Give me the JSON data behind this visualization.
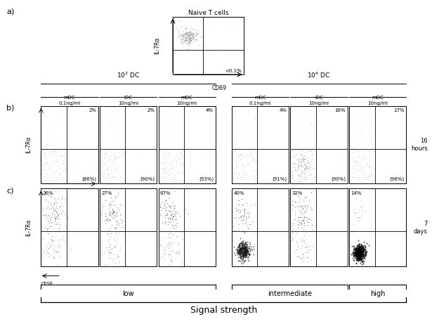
{
  "fig_width": 6.15,
  "fig_height": 4.71,
  "bg_color": "#ffffff",
  "panel_a": {
    "title": "Naive T cells",
    "ylabel": "IL-7Rα",
    "xlabel": "CD69",
    "annotation": "<0.1%"
  },
  "panel_b": {
    "timepoint": "16\nhours",
    "ylabel": "IL-7Rα",
    "xlabel": "CD69",
    "dc_groups": [
      "$10^2$ DC",
      "$10^4$ DC"
    ],
    "col_headers": [
      "mDC\n0.1ng/ml",
      "iDC\n10ng/ml",
      "mDC\n10ng/ml",
      "mDC\n0.1ng/ml",
      "iDC\n10ng/ml",
      "mDC\n10ng/ml"
    ],
    "upper_pcts": [
      "2%",
      "2%",
      "4%",
      "4%",
      "16%",
      "17%"
    ],
    "lower_pcts": [
      "(86%)",
      "(90%)",
      "(93%)",
      "(91%)",
      "(90%)",
      "(96%)"
    ]
  },
  "panel_c": {
    "timepoint": "7\ndays",
    "ylabel": "IL-7Rα",
    "xlabel_arrow": "CFSE",
    "upper_pcts": [
      "36%",
      "27%",
      "67%",
      "40%",
      "32%",
      "14%"
    ]
  },
  "signal_labels": [
    "low",
    "intermediate",
    "high"
  ],
  "signal_title": "Signal strength"
}
